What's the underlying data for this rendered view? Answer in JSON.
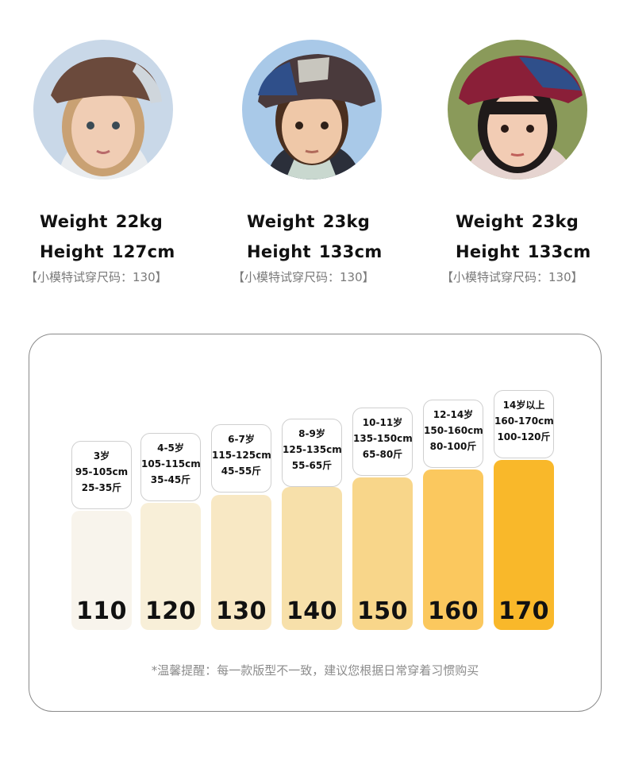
{
  "models": [
    {
      "weight_label": "Weight",
      "weight": "22kg",
      "height_label": "Height",
      "height": "127cm",
      "trial": "【小模特试穿尺码：130】",
      "hat_color": "#6b4a3c",
      "hat_panel": "#cfd6dc",
      "bg": "#c9d8e8"
    },
    {
      "weight_label": "Weight",
      "weight": "23kg",
      "height_label": "Height",
      "height": "133cm",
      "trial": "【小模特试穿尺码：130】",
      "hat_color": "#4a3a3c",
      "hat_panel": "#2f4f8a",
      "bg": "#a9c9e8"
    },
    {
      "weight_label": "Weight",
      "weight": "23kg",
      "height_label": "Height",
      "height": "133cm",
      "trial": "【小模特试穿尺码：130】",
      "hat_color": "#8a1f38",
      "hat_panel": "#2f4f8a",
      "bg": "#8a9a5a"
    }
  ],
  "sizes": [
    {
      "size": "110",
      "age": "3岁",
      "height": "95-105cm",
      "weight": "25-35斤",
      "color": "#f8f4ec"
    },
    {
      "size": "120",
      "age": "4-5岁",
      "height": "105-115cm",
      "weight": "35-45斤",
      "color": "#f8efd8"
    },
    {
      "size": "130",
      "age": "6-7岁",
      "height": "115-125cm",
      "weight": "45-55斤",
      "color": "#f8e8c4"
    },
    {
      "size": "140",
      "age": "8-9岁",
      "height": "125-135cm",
      "weight": "55-65斤",
      "color": "#f7e0aa"
    },
    {
      "size": "150",
      "age": "10-11岁",
      "height": "135-150cm",
      "weight": "65-80斤",
      "color": "#f8d68a"
    },
    {
      "size": "160",
      "age": "12-14岁",
      "height": "150-160cm",
      "weight": "80-100斤",
      "color": "#fbc85e"
    },
    {
      "size": "170",
      "age": "14岁以上",
      "height": "160-170cm",
      "weight": "100-120斤",
      "color": "#f9b82a"
    }
  ],
  "tip": "*温馨提醒：每一款版型不一致，建议您根据日常穿着习惯购买"
}
